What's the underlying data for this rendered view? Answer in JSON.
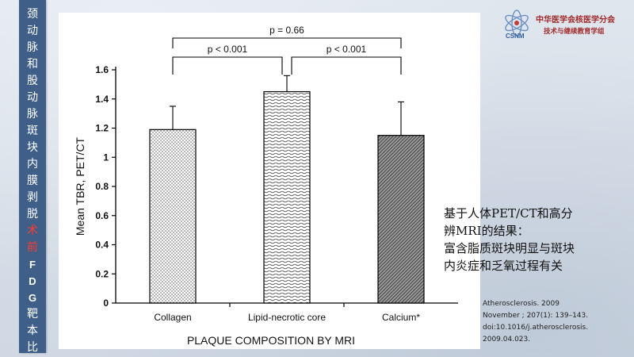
{
  "sidebar": {
    "title_chars": [
      {
        "ch": "颈",
        "style": "normal"
      },
      {
        "ch": "动",
        "style": "normal"
      },
      {
        "ch": "脉",
        "style": "normal"
      },
      {
        "ch": "和",
        "style": "normal"
      },
      {
        "ch": "股",
        "style": "normal"
      },
      {
        "ch": "动",
        "style": "normal"
      },
      {
        "ch": "脉",
        "style": "normal"
      },
      {
        "ch": "斑",
        "style": "normal"
      },
      {
        "ch": "块",
        "style": "normal"
      },
      {
        "ch": "内",
        "style": "normal"
      },
      {
        "ch": "膜",
        "style": "normal"
      },
      {
        "ch": "剥",
        "style": "normal"
      },
      {
        "ch": "脱",
        "style": "normal"
      },
      {
        "ch": "术",
        "style": "red"
      },
      {
        "ch": "前",
        "style": "red"
      },
      {
        "ch": "F",
        "style": "latin"
      },
      {
        "ch": "D",
        "style": "latin"
      },
      {
        "ch": "G",
        "style": "latin"
      },
      {
        "ch": "靶",
        "style": "normal"
      },
      {
        "ch": "本",
        "style": "normal"
      },
      {
        "ch": "比",
        "style": "normal"
      }
    ]
  },
  "logo": {
    "line1": "中华医学会核医学分会",
    "line2": "技术与继续教育学组",
    "mark_text": "CSNM"
  },
  "chart_data": {
    "type": "bar",
    "categories": [
      "Collagen",
      "Lipid-necrotic core",
      "Calcium*"
    ],
    "values": [
      1.19,
      1.45,
      1.15
    ],
    "error_upper": [
      1.35,
      1.56,
      1.38
    ],
    "ylabel": "Mean TBR, PET/CT",
    "xlabel": "PLAQUE COMPOSITION BY MRI",
    "ylim": [
      0,
      1.6
    ],
    "yticks": [
      0,
      0.2,
      0.4,
      0.6,
      0.8,
      1,
      1.2,
      1.4,
      1.6
    ],
    "ytick_labels": [
      "0",
      "0.2",
      "0.4",
      "0.6",
      "0.8",
      "1",
      "1.2",
      "1.4",
      "1.6"
    ],
    "grid": false,
    "comparisons": [
      {
        "from": 0,
        "to": 1,
        "label": "p < 0.001"
      },
      {
        "from": 1,
        "to": 2,
        "label": "p < 0.001"
      },
      {
        "from": 0,
        "to": 2,
        "label": "p = 0.66"
      }
    ],
    "patterns": [
      "dots",
      "waves",
      "diagonal-dense"
    ]
  },
  "summary": {
    "lines": [
      "基于人体PET/CT和高分",
      "辨MRI的结果：",
      "富含脂质斑块明显与斑块",
      "内炎症和乏氧过程有关"
    ]
  },
  "citation": {
    "lines": [
      "Atherosclerosis. 2009",
      "November ; 207(1): 139–143.",
      "doi:10.1016/j.atherosclerosis.",
      "2009.04.023."
    ]
  }
}
